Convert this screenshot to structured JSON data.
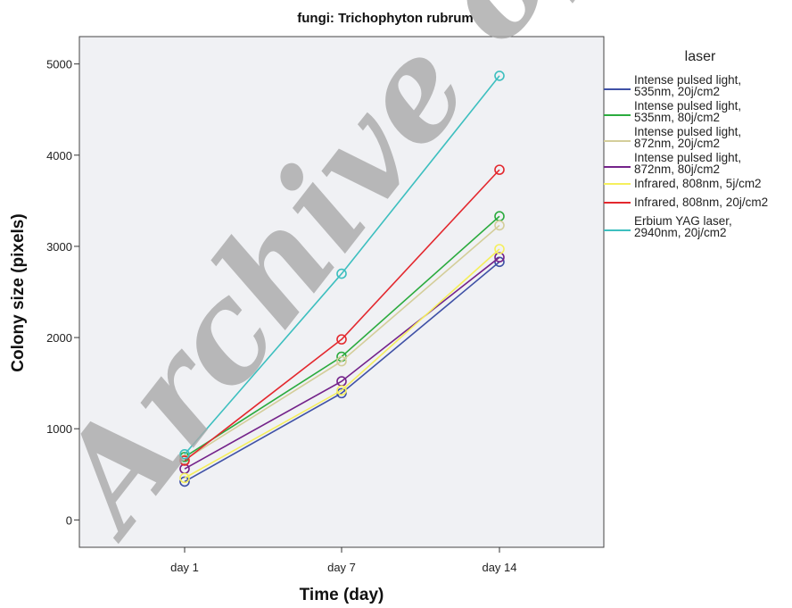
{
  "watermark": "Archive of",
  "chart_data": {
    "type": "line",
    "title": "fungi: Trichophyton rubrum",
    "xlabel": "Time (day)",
    "ylabel": "Colony size (pixels)",
    "categories": [
      "day 1",
      "day 7",
      "day 14"
    ],
    "ylim": [
      -300,
      5300
    ],
    "yticks": [
      0,
      1000,
      2000,
      3000,
      4000,
      5000
    ],
    "grid": false,
    "legend": {
      "title": "laser",
      "placement": "right"
    },
    "series": [
      {
        "name": "Intense pulsed light, 535nm, 20j/cm2",
        "legend_lines": [
          "Intense pulsed light,",
          "535nm, 20j/cm2"
        ],
        "color": "#3f51a6",
        "values": [
          420,
          1390,
          2830
        ]
      },
      {
        "name": "Intense pulsed light, 535nm, 80j/cm2",
        "legend_lines": [
          "Intense pulsed light,",
          "535nm, 80j/cm2"
        ],
        "color": "#2bab3e",
        "values": [
          690,
          1790,
          3330
        ]
      },
      {
        "name": "Intense pulsed light, 872nm, 20j/cm2",
        "legend_lines": [
          "Intense pulsed light,",
          "872nm, 20j/cm2"
        ],
        "color": "#d4ce9a",
        "values": [
          660,
          1740,
          3230
        ]
      },
      {
        "name": "Intense pulsed light, 872nm, 80j/cm2",
        "legend_lines": [
          "Intense pulsed light,",
          "872nm, 80j/cm2"
        ],
        "color": "#74238a",
        "values": [
          560,
          1520,
          2880
        ]
      },
      {
        "name": "Infrared, 808nm, 5j/cm2",
        "legend_lines": [
          "Infrared, 808nm, 5j/cm2"
        ],
        "color": "#f5ef5c",
        "values": [
          460,
          1420,
          2970
        ]
      },
      {
        "name": "Infrared, 808nm, 20j/cm2",
        "legend_lines": [
          "Infrared, 808nm, 20j/cm2"
        ],
        "color": "#e3282e",
        "values": [
          650,
          1980,
          3840
        ]
      },
      {
        "name": "Erbium YAG laser, 2940nm, 20j/cm2",
        "legend_lines": [
          "Erbium YAG laser,",
          "2940nm, 20j/cm2"
        ],
        "color": "#3dbfbf",
        "values": [
          720,
          2700,
          4870
        ]
      }
    ]
  }
}
